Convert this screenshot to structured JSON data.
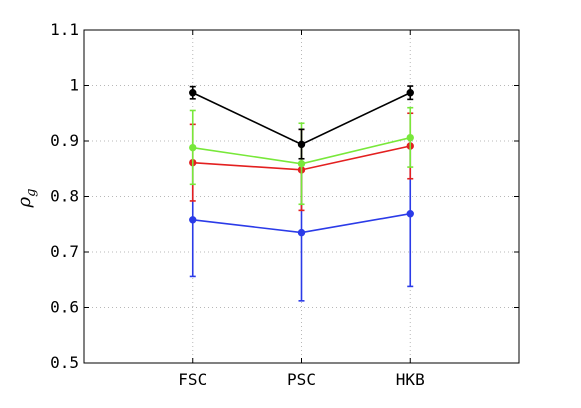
{
  "chart_data": {
    "type": "line",
    "title": "",
    "xlabel": "",
    "ylabel": "ρ",
    "ylabel_subscript": "g",
    "categories": [
      "FSC",
      "PSC",
      "HKB"
    ],
    "xlim": [
      0,
      4
    ],
    "ylim": [
      0.5,
      1.1
    ],
    "yticks": [
      0.5,
      0.6,
      0.7,
      0.8,
      0.9,
      1.0,
      1.1
    ],
    "ytick_labels": [
      "0.5",
      "0.6",
      "0.7",
      "0.8",
      "0.9",
      "1",
      "1.1"
    ],
    "grid": true,
    "grid_style": "dotted",
    "legend": "none",
    "series": [
      {
        "color": "#2b3be8",
        "values": [
          0.758,
          0.735,
          0.769
        ],
        "error_low": [
          0.656,
          0.612,
          0.638
        ],
        "error_high": [
          0.862,
          0.86,
          0.904
        ]
      },
      {
        "color": "#e32020",
        "values": [
          0.861,
          0.848,
          0.891
        ],
        "error_low": [
          0.792,
          0.775,
          0.832
        ],
        "error_high": [
          0.93,
          0.921,
          0.95
        ]
      },
      {
        "color": "#78e83a",
        "values": [
          0.888,
          0.859,
          0.906
        ],
        "error_low": [
          0.822,
          0.786,
          0.853
        ],
        "error_high": [
          0.955,
          0.932,
          0.96
        ]
      },
      {
        "color": "#000000",
        "values": [
          0.987,
          0.894,
          0.987
        ],
        "error_low": [
          0.976,
          0.868,
          0.975
        ],
        "error_high": [
          0.998,
          0.921,
          0.999
        ]
      }
    ]
  }
}
